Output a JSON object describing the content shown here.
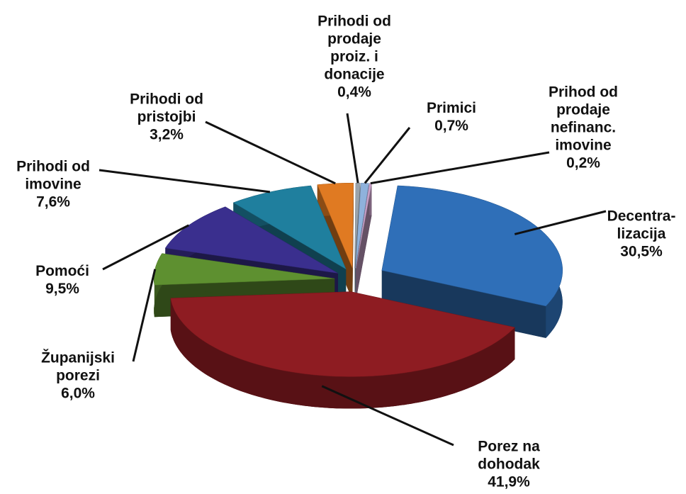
{
  "chart_data": {
    "type": "pie",
    "categories": [
      "Decentra-lizacija",
      "Porez na dohodak",
      "Županijski porezi",
      "Pomoći",
      "Prihodi od imovine",
      "Prihodi od pristojbi",
      "Prihodi od prodaje proiz. i donacije",
      "Primici",
      "Prihod od prodaje nefinanc. imovine"
    ],
    "values": [
      30.5,
      41.9,
      6.0,
      9.5,
      7.6,
      3.2,
      0.4,
      0.7,
      0.2
    ],
    "value_labels": [
      "30,5%",
      "41,9%",
      "6,0%",
      "9,5%",
      "7,6%",
      "3,2%",
      "0,4%",
      "0,7%",
      "0,2%"
    ],
    "colors": [
      "#2f6fb8",
      "#8e1c22",
      "#5e9030",
      "#3a2f8e",
      "#1f7f9e",
      "#e07a22",
      "#9aa3ab",
      "#8fb2dc",
      "#c9a1c9"
    ]
  }
}
